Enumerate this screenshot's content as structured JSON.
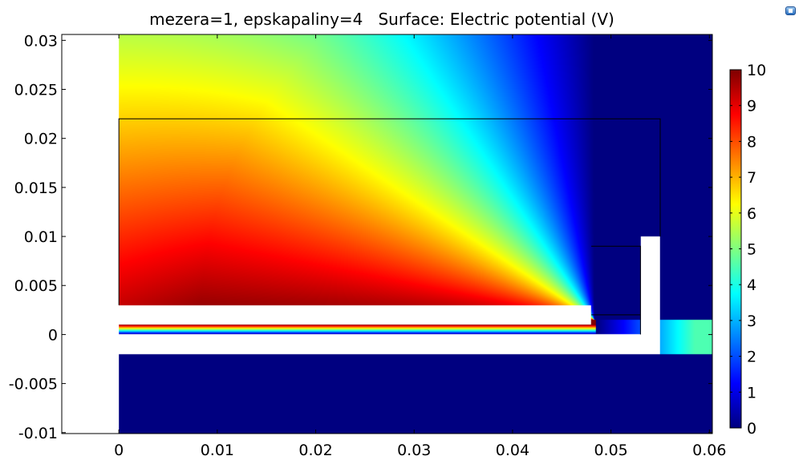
{
  "chart_data": {
    "type": "heatmap",
    "title": "mezera=1, epskapaliny=4   Surface: Electric potential (V)",
    "xlabel": "",
    "ylabel": "",
    "xlim": [
      -0.0058,
      0.0603
    ],
    "ylim": [
      -0.0101,
      0.0306
    ],
    "x_ticks": [
      0,
      0.01,
      0.02,
      0.03,
      0.04,
      0.05,
      0.06
    ],
    "x_tick_labels": [
      "0",
      "0.01",
      "0.02",
      "0.03",
      "0.04",
      "0.05",
      "0.06"
    ],
    "y_ticks": [
      -0.01,
      -0.005,
      0,
      0.005,
      0.01,
      0.015,
      0.02,
      0.025,
      0.03
    ],
    "y_tick_labels": [
      "-0.01",
      "-0.005",
      "0",
      "0.005",
      "0.01",
      "0.015",
      "0.02",
      "0.025",
      "0.03"
    ],
    "grid": false,
    "colormap": "rainbow",
    "colorbar": {
      "range": [
        0,
        10
      ],
      "ticks": [
        0,
        1,
        2,
        3,
        4,
        5,
        6,
        7,
        8,
        9,
        10
      ],
      "tick_labels": [
        "0",
        "1",
        "2",
        "3",
        "4",
        "5",
        "6",
        "7",
        "8",
        "9",
        "10"
      ],
      "placement": "right"
    },
    "domain_x": [
      0,
      0.0606
    ],
    "domain_y": [
      -0.0101,
      0.0306
    ],
    "boundary_outlines": [
      [
        [
          0,
          0.003
        ],
        [
          0,
          0.022
        ],
        [
          0.055,
          0.022
        ],
        [
          0.055,
          0.01
        ]
      ],
      [
        [
          0.048,
          0.009
        ],
        [
          0.053,
          0.009
        ],
        [
          0.053,
          0.0
        ]
      ],
      [
        [
          0.048,
          0.002
        ],
        [
          0.053,
          0.002
        ]
      ]
    ],
    "excluded_regions": [
      [
        [
          0,
          0.001
        ],
        [
          0.048,
          0.001
        ],
        [
          0.048,
          0.003
        ],
        [
          0,
          0.003
        ]
      ],
      [
        [
          0,
          -0.002
        ],
        [
          0.055,
          -0.002
        ],
        [
          0.055,
          0.01
        ],
        [
          0.053,
          0.01
        ],
        [
          0.053,
          0.0
        ],
        [
          0,
          0.0
        ]
      ]
    ]
  }
}
